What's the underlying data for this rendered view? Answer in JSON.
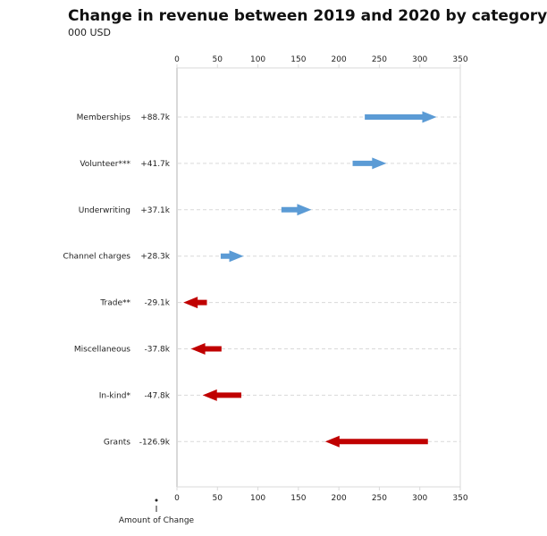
{
  "chart_data": {
    "type": "arrow",
    "title": "Change in revenue between 2019 and 2020 by category",
    "subtitle": "000 USD",
    "xlabel": "",
    "ylabel": "",
    "xlim": [
      0,
      350
    ],
    "xticks": [
      0,
      50,
      100,
      150,
      200,
      250,
      300,
      350
    ],
    "xtick_labels": [
      "0",
      "50",
      "100",
      "150",
      "200",
      "250",
      "300",
      "350"
    ],
    "grid": "horizontal dashed per category",
    "legend": {
      "label": "Amount of Change",
      "placement": "bottom-left"
    },
    "colors": {
      "increase": "#5B9BD5",
      "decrease": "#C00000",
      "frame": "#d9d9d9",
      "grid": "#d9d9d9"
    },
    "categories": [
      "Memberships",
      "Volunteer***",
      "Underwriting",
      "Channel charges",
      "Trade**",
      "Miscellaneous",
      "In-kind*",
      "Grants"
    ],
    "change_labels": [
      "+88.7k",
      "+41.7k",
      "+37.1k",
      "+28.3k",
      "-29.1k",
      "-37.8k",
      "-47.8k",
      "-126.9k"
    ],
    "series": [
      {
        "name": "2019",
        "values": [
          232,
          217,
          129,
          54,
          37,
          55,
          79.5,
          310
        ]
      },
      {
        "name": "2020",
        "values": [
          320.7,
          258.7,
          166.1,
          82.3,
          7.9,
          17.2,
          31.7,
          183.1
        ]
      }
    ],
    "change": [
      88.7,
      41.7,
      37.1,
      28.3,
      -29.1,
      -37.8,
      -47.8,
      -126.9
    ]
  }
}
